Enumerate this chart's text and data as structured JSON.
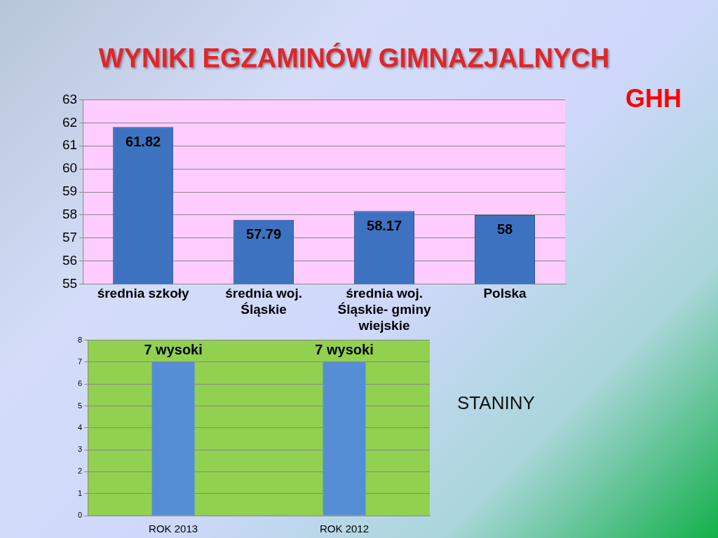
{
  "chart_data": [
    {
      "type": "bar",
      "title": "WYNIKI EGZAMINÓW GIMNAZJALNYCH",
      "annotations": [
        "GHH"
      ],
      "categories": [
        "średnia szkoły",
        "średnia woj. Śląskie",
        "średnia woj. Śląskie- gminy wiejskie",
        "Polska"
      ],
      "values": [
        61.82,
        57.79,
        58.17,
        58
      ],
      "color": "#3d72c0",
      "ylim": [
        55,
        63
      ],
      "yticks": [
        55,
        56,
        57,
        58,
        59,
        60,
        61,
        62,
        63
      ],
      "grid": "y",
      "data_labels": true
    },
    {
      "type": "bar",
      "annotations": [
        "STANINY"
      ],
      "categories": [
        "ROK 2013",
        "ROK 2012"
      ],
      "values": [
        7,
        7
      ],
      "value_labels": [
        "7 wysoki",
        "7 wysoki"
      ],
      "color": "#558ed5",
      "ylim": [
        0,
        8
      ],
      "yticks": [
        0,
        1,
        2,
        3,
        4,
        5,
        6,
        7,
        8
      ],
      "grid": "y"
    }
  ]
}
